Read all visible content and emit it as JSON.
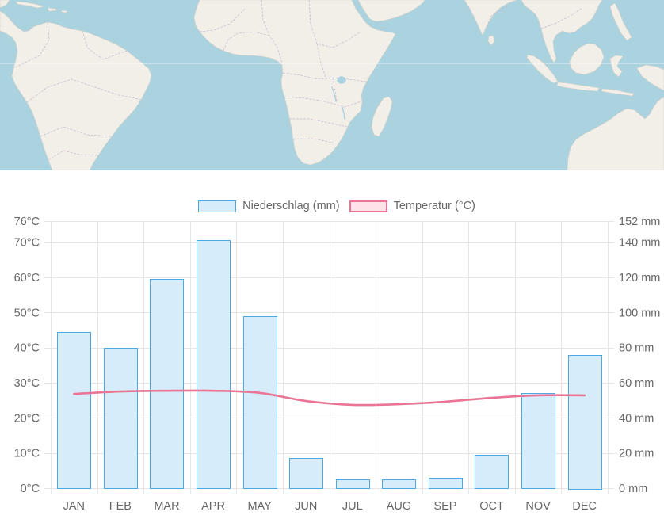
{
  "map": {
    "water_color": "#aad3df",
    "land_color": "#f2efe9",
    "border_color": "#cbb6cc"
  },
  "chart_data": {
    "type": "bar",
    "categories": [
      "JAN",
      "FEB",
      "MAR",
      "APR",
      "MAY",
      "JUN",
      "JUL",
      "AUG",
      "SEP",
      "OCT",
      "NOV",
      "DEC"
    ],
    "series": [
      {
        "name": "Niederschlag (mm)",
        "type": "bar",
        "axis": "right",
        "values": [
          89,
          80,
          119,
          141,
          98,
          17,
          5,
          5,
          6,
          19,
          54,
          76
        ],
        "color": "#4ea8e2",
        "fill": "#d7ecfb"
      },
      {
        "name": "Temperatur (°C)",
        "type": "line",
        "axis": "left",
        "smooth": true,
        "values": [
          26.8,
          27.5,
          27.7,
          27.7,
          27.1,
          24.8,
          23.7,
          23.9,
          24.6,
          25.7,
          26.4,
          26.4
        ],
        "color": "#ea7493",
        "fill": "#fde2e9"
      }
    ],
    "y_left": {
      "min": 0,
      "max": 76,
      "ticks": [
        0,
        10,
        20,
        30,
        40,
        50,
        60,
        70,
        76
      ],
      "tick_labels": [
        "0°C",
        "10°C",
        "20°C",
        "30°C",
        "40°C",
        "50°C",
        "60°C",
        "70°C",
        "76°C"
      ]
    },
    "y_right": {
      "min": 0,
      "max": 152,
      "ticks": [
        0,
        20,
        40,
        60,
        80,
        100,
        120,
        140,
        152
      ],
      "tick_labels": [
        "0 mm",
        "20 mm",
        "40 mm",
        "60 mm",
        "80 mm",
        "100 mm",
        "120 mm",
        "140 mm",
        "152 mm"
      ]
    },
    "legend": "top",
    "grid": true,
    "gridline_color": "#e5e5e5",
    "axis_text_color": "#666666"
  }
}
